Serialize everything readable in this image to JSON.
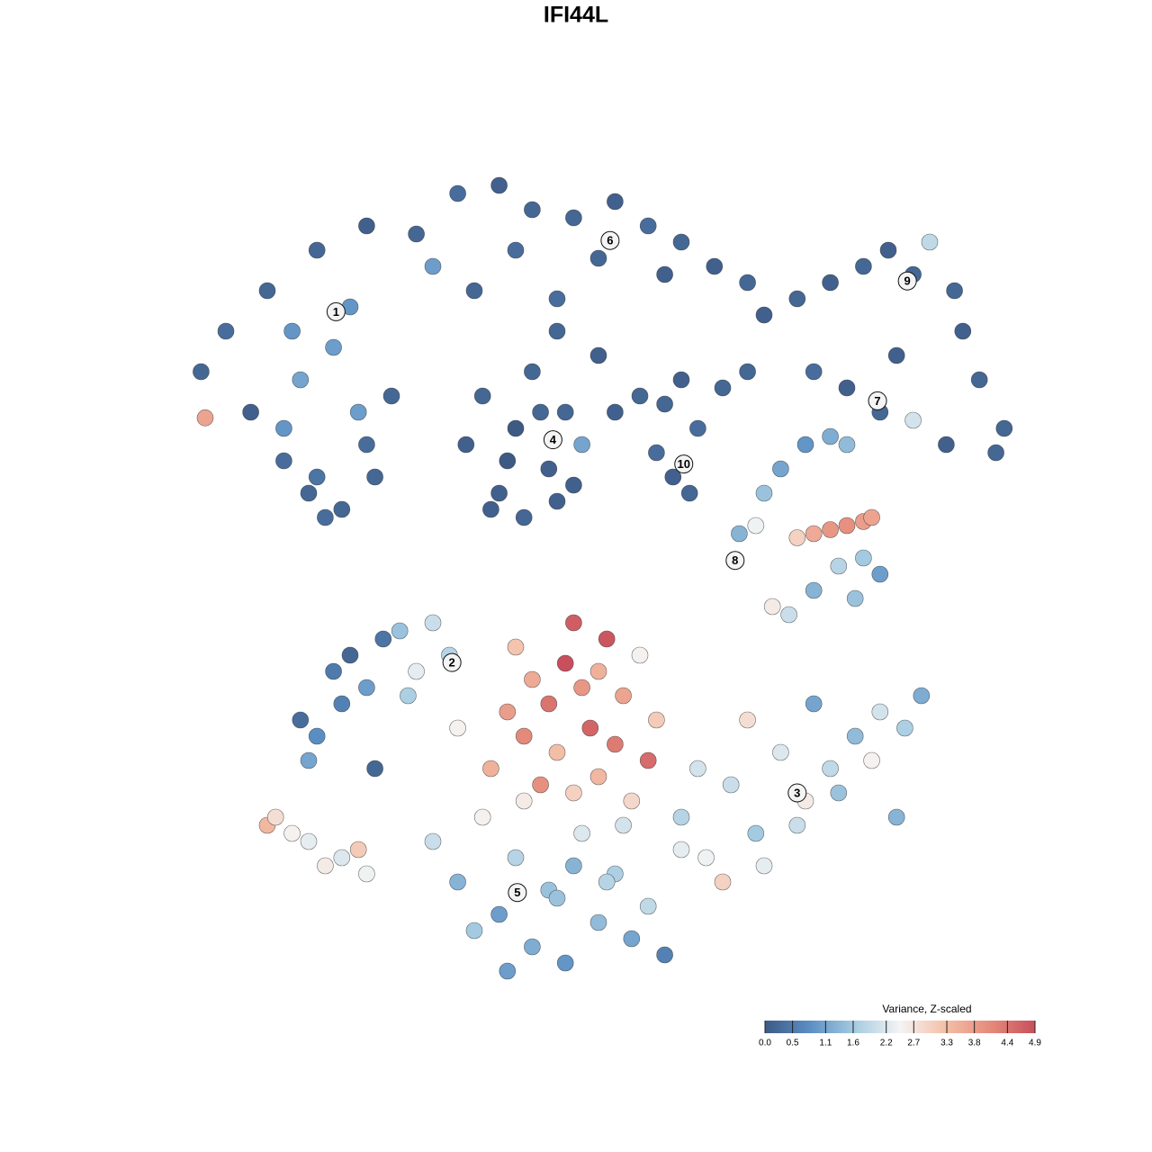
{
  "chart_data": {
    "type": "scatter",
    "title": "IFI44L",
    "xlim": [
      0,
      100
    ],
    "ylim": [
      0,
      100
    ],
    "series": [
      {
        "x": [
          2,
          5,
          8,
          10,
          12,
          15,
          18,
          20,
          22,
          25,
          14,
          16,
          19,
          12,
          17,
          21,
          23,
          13,
          2.5
        ],
        "y": [
          75,
          80,
          70,
          85,
          64,
          60,
          78,
          83,
          66,
          72,
          74,
          62,
          58,
          68,
          57,
          70,
          62,
          80,
          69.3
        ],
        "values": [
          0.2,
          0.3,
          0.1,
          0.2,
          0.3,
          0.2,
          1.0,
          0.9,
          0.3,
          0.2,
          1.1,
          0.4,
          0.2,
          0.9,
          0.3,
          1.0,
          0.2,
          0.9,
          3.7
        ]
      },
      {
        "x": [
          16,
          22,
          28,
          33,
          38,
          42,
          47,
          52,
          56,
          60,
          64,
          68,
          30,
          40,
          50,
          58,
          35,
          45
        ],
        "y": [
          90,
          93,
          92,
          97,
          98,
          95,
          94,
          96,
          93,
          91,
          88,
          86,
          88,
          90,
          89,
          87,
          85,
          84
        ],
        "values": [
          0.2,
          0.1,
          0.2,
          0.3,
          0.1,
          0.2,
          0.2,
          0.1,
          0.3,
          0.2,
          0.1,
          0.2,
          1.0,
          0.3,
          0.2,
          0.1,
          0.2,
          0.3
        ]
      },
      {
        "x": [
          34,
          36,
          38,
          40,
          42,
          44,
          46,
          48,
          37,
          41,
          45,
          39,
          43,
          47
        ],
        "y": [
          66,
          72,
          60,
          68,
          75,
          63,
          70,
          66,
          58,
          57,
          59,
          64,
          70,
          61
        ],
        "values": [
          0.1,
          0.2,
          0.1,
          0.0,
          0.2,
          0.1,
          0.2,
          1.1,
          0.1,
          0.2,
          0.1,
          0.0,
          0.2,
          0.1
        ]
      },
      {
        "x": [
          52,
          55,
          58,
          60,
          62,
          65,
          68,
          59,
          61,
          57,
          50,
          45
        ],
        "y": [
          70,
          72,
          71,
          74,
          68,
          73,
          75,
          62,
          60,
          65,
          77,
          80
        ],
        "values": [
          0.1,
          0.2,
          0.2,
          0.1,
          0.3,
          0.2,
          0.2,
          0.1,
          0.2,
          0.3,
          0.1,
          0.2
        ]
      },
      {
        "x": [
          70,
          74,
          78,
          82,
          85,
          88,
          90,
          93,
          94,
          96,
          80,
          84,
          88,
          92,
          98,
          86,
          76,
          99
        ],
        "y": [
          82,
          84,
          86,
          88,
          90,
          87,
          91,
          85,
          80,
          74,
          73,
          70,
          69,
          66,
          65,
          77,
          75,
          68
        ],
        "values": [
          0.1,
          0.2,
          0.1,
          0.2,
          0.1,
          0.2,
          1.9,
          0.2,
          0.1,
          0.2,
          0.1,
          0.2,
          2.1,
          0.1,
          0.2,
          0.1,
          0.3,
          0.2
        ]
      },
      {
        "x": [
          67,
          70,
          72,
          75,
          78,
          80,
          82,
          84,
          76,
          79,
          73,
          71,
          81,
          69
        ],
        "y": [
          55,
          60,
          63,
          66,
          67,
          66,
          52,
          50,
          48,
          51,
          45,
          46,
          47,
          56
        ],
        "values": [
          1.3,
          1.5,
          1.1,
          0.9,
          1.2,
          1.4,
          1.6,
          1.0,
          1.3,
          1.8,
          2.0,
          2.6,
          1.5,
          2.4
        ]
      },
      {
        "x": [
          74,
          76,
          78,
          80,
          82,
          83
        ],
        "y": [
          54.5,
          55,
          55.5,
          56,
          56.5,
          57
        ],
        "values": [
          3.0,
          3.6,
          3.9,
          4.0,
          3.8,
          3.7
        ]
      },
      {
        "x": [
          14,
          16,
          18,
          20,
          22,
          24,
          26,
          28,
          30,
          32,
          15,
          19,
          23,
          27,
          33
        ],
        "y": [
          32,
          30,
          38,
          40,
          36,
          42,
          43,
          38,
          44,
          40,
          27,
          34,
          26,
          35,
          31
        ],
        "values": [
          0.3,
          0.8,
          0.5,
          0.2,
          1.0,
          0.4,
          1.5,
          2.3,
          2.0,
          1.8,
          1.1,
          0.6,
          0.2,
          1.7,
          2.5
        ]
      },
      {
        "x": [
          60,
          63,
          66,
          69,
          72,
          75,
          78,
          81,
          84,
          87,
          89,
          65,
          70,
          74,
          79,
          83,
          86,
          68,
          76,
          62
        ],
        "y": [
          20,
          15,
          24,
          18,
          28,
          22,
          26,
          30,
          33,
          31,
          35,
          12,
          14,
          19,
          23,
          27,
          20,
          32,
          34,
          26
        ],
        "values": [
          1.8,
          2.4,
          2.0,
          1.6,
          2.2,
          2.6,
          1.9,
          1.4,
          2.1,
          1.7,
          1.2,
          3.0,
          2.3,
          2.0,
          1.5,
          2.5,
          1.3,
          2.8,
          1.1,
          2.1
        ]
      },
      {
        "x": [
          30,
          33,
          36,
          38,
          40,
          42,
          44,
          46,
          48,
          50,
          52,
          54,
          56,
          58,
          60,
          35,
          41,
          47,
          53,
          39,
          45,
          51
        ],
        "y": [
          17,
          12,
          20,
          8,
          15,
          4,
          11,
          2,
          18,
          7,
          13,
          5,
          9,
          3,
          16,
          6,
          22,
          14,
          19,
          1,
          10,
          12
        ],
        "values": [
          2.0,
          1.3,
          2.5,
          1.0,
          1.8,
          1.2,
          1.5,
          0.9,
          2.2,
          1.4,
          1.7,
          1.1,
          1.9,
          0.6,
          2.3,
          1.6,
          2.6,
          1.3,
          2.1,
          1.0,
          1.5,
          1.8
        ]
      },
      {
        "x": [
          10,
          11,
          13,
          15,
          17,
          19,
          21,
          22
        ],
        "y": [
          19,
          20,
          18,
          17,
          14,
          15,
          16,
          13
        ],
        "values": [
          3.4,
          2.8,
          2.5,
          2.3,
          2.6,
          2.2,
          3.1,
          2.4
        ]
      },
      {
        "x": [
          37,
          39,
          41,
          42,
          44,
          45,
          46,
          47,
          48,
          49,
          50,
          51,
          52,
          53,
          54,
          55,
          56,
          57,
          40,
          43,
          47,
          50
        ],
        "y": [
          26,
          33,
          30,
          37,
          34,
          28,
          39,
          23,
          36,
          31,
          25,
          42,
          29,
          35,
          22,
          40,
          27,
          32,
          41,
          24,
          44,
          38
        ],
        "values": [
          3.5,
          3.8,
          4.1,
          3.6,
          4.4,
          3.3,
          4.9,
          3.0,
          3.9,
          4.6,
          3.4,
          4.8,
          4.3,
          3.7,
          2.9,
          2.5,
          4.5,
          3.1,
          3.2,
          4.0,
          4.7,
          3.5
        ]
      }
    ],
    "annotations": [
      {
        "text": "1",
        "x": 18.3,
        "y": 82.4
      },
      {
        "text": "2",
        "x": 32.3,
        "y": 39.1
      },
      {
        "text": "3",
        "x": 74,
        "y": 23
      },
      {
        "text": "4",
        "x": 44.5,
        "y": 66.6
      },
      {
        "text": "5",
        "x": 40.2,
        "y": 10.7
      },
      {
        "text": "6",
        "x": 51.4,
        "y": 91.2
      },
      {
        "text": "7",
        "x": 83.7,
        "y": 71.4
      },
      {
        "text": "8",
        "x": 66.5,
        "y": 51.7
      },
      {
        "text": "9",
        "x": 87.3,
        "y": 86.2
      },
      {
        "text": "10",
        "x": 60.3,
        "y": 63.6
      }
    ],
    "colorbar": {
      "title": "Variance, Z-scaled",
      "lim": [
        0,
        4.9
      ],
      "ticks": [
        {
          "value": 0,
          "label": "0.0"
        },
        0.5,
        1.1,
        1.6,
        2.2,
        2.7,
        3.3,
        3.8,
        4.4,
        4.9
      ],
      "colors": [
        "#3d5a85",
        "#5b8fc4",
        "#a6cce1",
        "#f4f4f4",
        "#f4c0a8",
        "#e58b7b",
        "#c84f5c"
      ]
    }
  }
}
